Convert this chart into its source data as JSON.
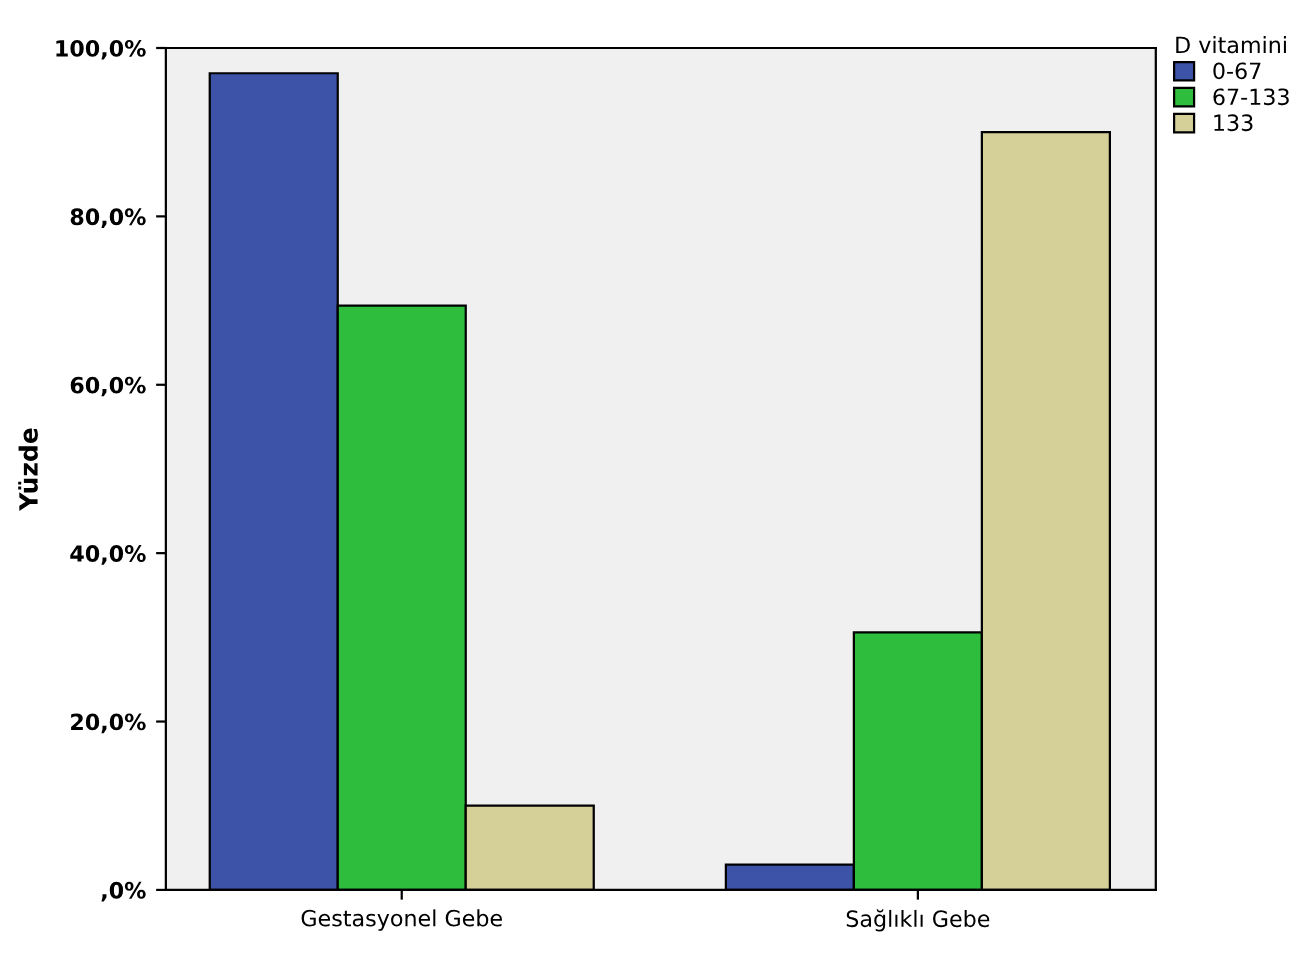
{
  "chart_data": {
    "type": "bar",
    "ylabel": "Yüzde",
    "legend_title": "D vitamini",
    "categories": [
      "Gestasyonel Gebe",
      "Sağlıklı Gebe"
    ],
    "series": [
      {
        "name": "0-67",
        "color": "#3d53a8",
        "values": [
          97.0,
          3.0
        ]
      },
      {
        "name": "67-133",
        "color": "#2ebd3d",
        "values": [
          69.4,
          30.6
        ]
      },
      {
        "name": "133",
        "color": "#d5cf98",
        "values": [
          10.0,
          90.0
        ]
      }
    ],
    "ylim": [
      0,
      100
    ],
    "yticks": [
      {
        "value": 0,
        "label": ",0%"
      },
      {
        "value": 20,
        "label": "20,0%"
      },
      {
        "value": 40,
        "label": "40,0%"
      },
      {
        "value": 60,
        "label": "60,0%"
      },
      {
        "value": 80,
        "label": "80,0%"
      },
      {
        "value": 100,
        "label": "100,0%"
      }
    ],
    "grid": false,
    "legend": "top right"
  }
}
